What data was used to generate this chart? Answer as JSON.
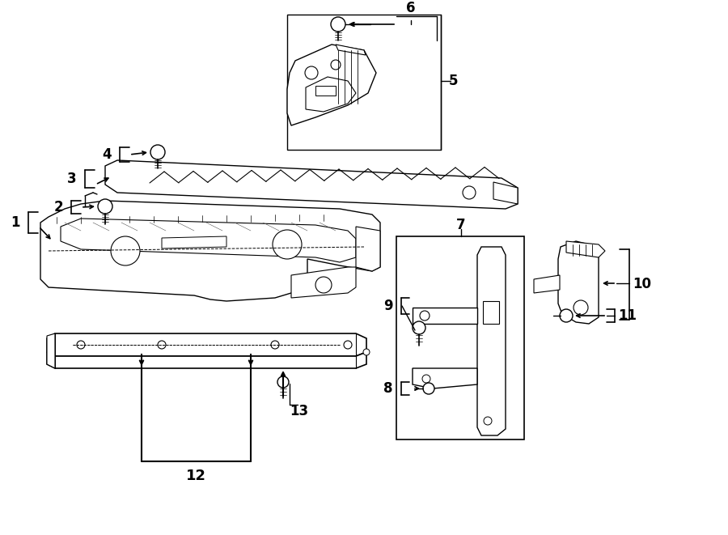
{
  "bg_color": "#ffffff",
  "line_color": "#000000",
  "fig_width": 9.0,
  "fig_height": 6.61,
  "dpi": 100,
  "lw": 1.0,
  "parts": {
    "label_fontsize": 12,
    "bracket_tick": 0.012
  }
}
